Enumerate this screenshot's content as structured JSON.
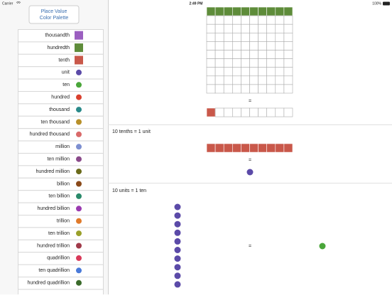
{
  "status_bar": {
    "carrier": "Carrier",
    "time": "2:49 PM",
    "battery": "100%"
  },
  "palette_button": {
    "line1": "Place Value",
    "line2": "Color Palette"
  },
  "palette": [
    {
      "name": "thousandth",
      "color": "#9b5fc0",
      "swatch": "square"
    },
    {
      "name": "hundredth",
      "color": "#5e8c3a",
      "swatch": "square"
    },
    {
      "name": "tenth",
      "color": "#c9584a",
      "swatch": "square"
    },
    {
      "name": "unit",
      "color": "#5b4aa8",
      "swatch": "circle"
    },
    {
      "name": "ten",
      "color": "#4aa63a",
      "swatch": "circle"
    },
    {
      "name": "hundred",
      "color": "#d9402e",
      "swatch": "circle"
    },
    {
      "name": "thousand",
      "color": "#2a8a8a",
      "swatch": "circle"
    },
    {
      "name": "ten thousand",
      "color": "#b8902a",
      "swatch": "circle"
    },
    {
      "name": "hundred thousand",
      "color": "#d96a6a",
      "swatch": "circle"
    },
    {
      "name": "million",
      "color": "#7d8fd0",
      "swatch": "circle"
    },
    {
      "name": "ten million",
      "color": "#8a4a8a",
      "swatch": "circle"
    },
    {
      "name": "hundred million",
      "color": "#6a6a1a",
      "swatch": "circle"
    },
    {
      "name": "billion",
      "color": "#8a4a1a",
      "swatch": "circle"
    },
    {
      "name": "ten billion",
      "color": "#2a8a6a",
      "swatch": "circle"
    },
    {
      "name": "hundred billion",
      "color": "#9a3ab0",
      "swatch": "circle"
    },
    {
      "name": "trillion",
      "color": "#e07a2a",
      "swatch": "circle"
    },
    {
      "name": "ten trillion",
      "color": "#9aa02a",
      "swatch": "circle"
    },
    {
      "name": "hundred trillion",
      "color": "#a03a4a",
      "swatch": "circle"
    },
    {
      "name": "quadrillion",
      "color": "#d93a5a",
      "swatch": "circle"
    },
    {
      "name": "ten quadrillion",
      "color": "#4a7ad9",
      "swatch": "circle"
    },
    {
      "name": "hundred quadrillion",
      "color": "#3a6a2a",
      "swatch": "circle"
    }
  ],
  "sections": [
    {
      "equals": "="
    },
    {
      "caption": "10 tenths = 1 unit",
      "equals": "="
    },
    {
      "caption": "10 units = 1 ten",
      "equals": "="
    }
  ]
}
